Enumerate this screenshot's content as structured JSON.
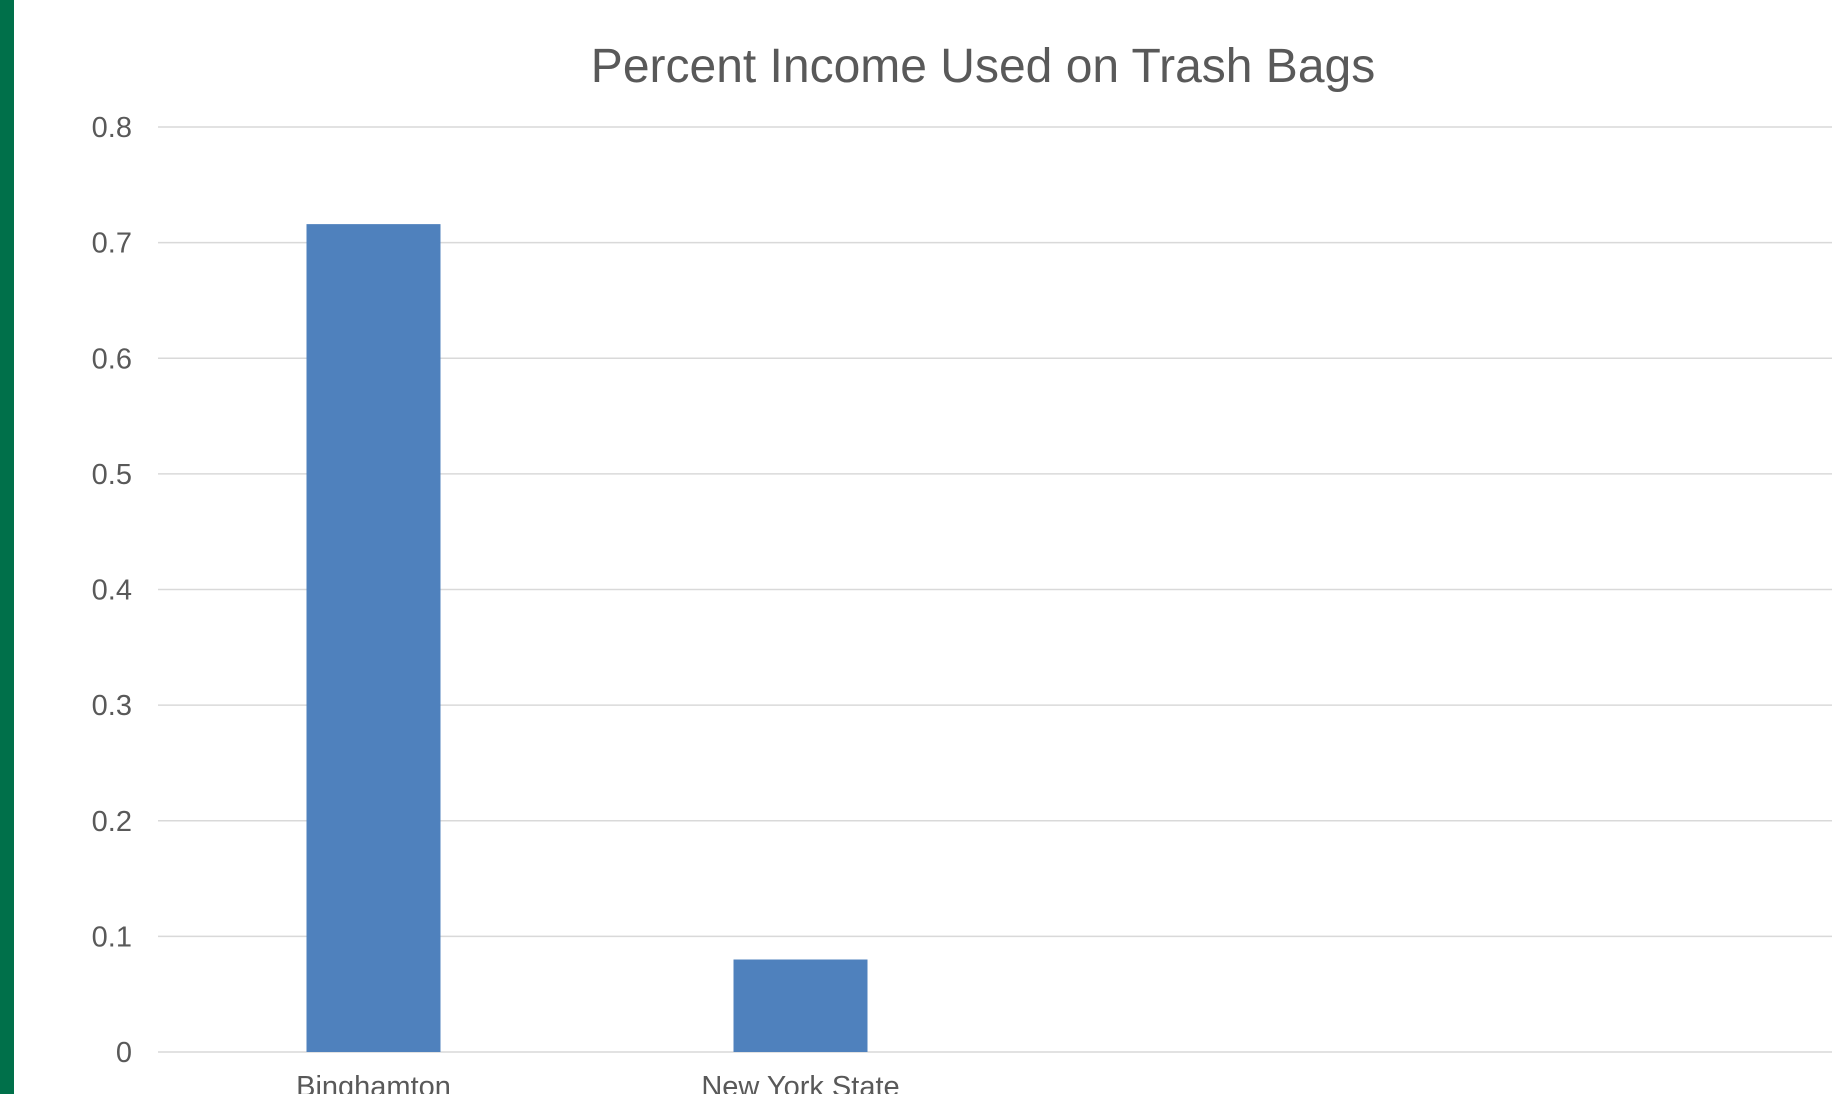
{
  "theme": {
    "stripe_color": "#00704a",
    "bar_color": "#4f81bd"
  },
  "chart_data": {
    "type": "bar",
    "title": "Percent Income Used on Trash Bags",
    "xlabel": "",
    "ylabel": "",
    "categories": [
      "Binghamton",
      "New York State"
    ],
    "values": [
      0.716,
      0.08
    ],
    "ylim": [
      0,
      0.8
    ],
    "yticks": [
      0,
      0.1,
      0.2,
      0.3,
      0.4,
      0.5,
      0.6,
      0.7,
      0.8
    ],
    "ytick_labels": [
      "0",
      "0.1",
      "0.2",
      "0.3",
      "0.4",
      "0.5",
      "0.6",
      "0.7",
      "0.8"
    ],
    "grid": true,
    "legend": "none"
  }
}
